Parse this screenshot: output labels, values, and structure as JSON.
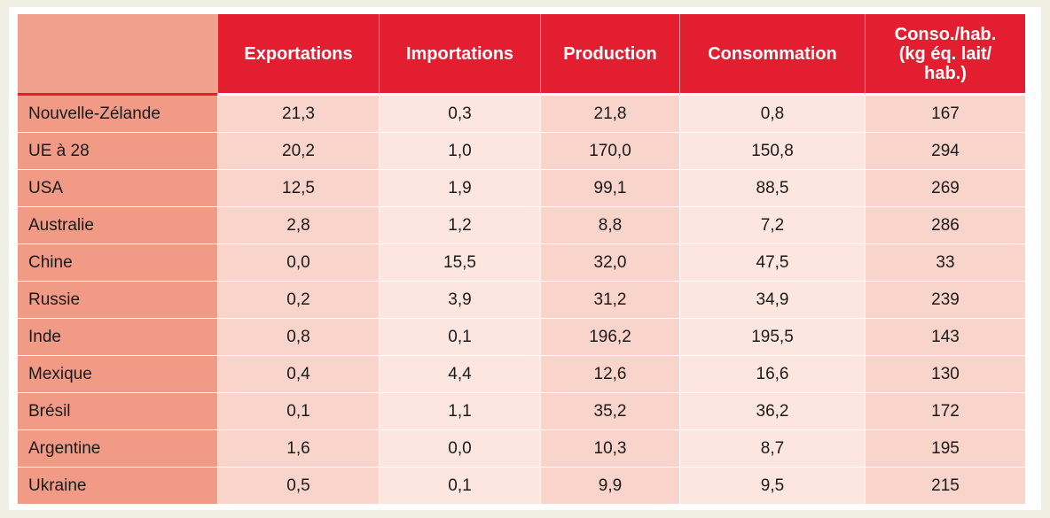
{
  "chart_data": {
    "type": "table",
    "columns": [
      "Exportations",
      "Importations",
      "Production",
      "Consommation",
      "Conso./hab. (kg éq. lait/ hab.)"
    ],
    "header_lines": {
      "conso_hab": [
        "Conso./hab.",
        "(kg éq. lait/",
        "hab.)"
      ]
    },
    "rows": [
      {
        "country": "Nouvelle-Zélande",
        "values": [
          "21,3",
          "0,3",
          "21,8",
          "0,8",
          "167"
        ]
      },
      {
        "country": "UE à 28",
        "values": [
          "20,2",
          "1,0",
          "170,0",
          "150,8",
          "294"
        ]
      },
      {
        "country": "USA",
        "values": [
          "12,5",
          "1,9",
          "99,1",
          "88,5",
          "269"
        ]
      },
      {
        "country": "Australie",
        "values": [
          "2,8",
          "1,2",
          "8,8",
          "7,2",
          "286"
        ]
      },
      {
        "country": "Chine",
        "values": [
          "0,0",
          "15,5",
          "32,0",
          "47,5",
          "33"
        ]
      },
      {
        "country": "Russie",
        "values": [
          "0,2",
          "3,9",
          "31,2",
          "34,9",
          "239"
        ]
      },
      {
        "country": "Inde",
        "values": [
          "0,8",
          "0,1",
          "196,2",
          "195,5",
          "143"
        ]
      },
      {
        "country": "Mexique",
        "values": [
          "0,4",
          "4,4",
          "12,6",
          "16,6",
          "130"
        ]
      },
      {
        "country": "Brésil",
        "values": [
          "0,1",
          "1,1",
          "35,2",
          "36,2",
          "172"
        ]
      },
      {
        "country": "Argentine",
        "values": [
          "1,6",
          "0,0",
          "10,3",
          "8,7",
          "195"
        ]
      },
      {
        "country": "Ukraine",
        "values": [
          "0,5",
          "0,1",
          "9,9",
          "9,5",
          "215"
        ]
      }
    ]
  },
  "colors": {
    "header_red": "#e31e30",
    "corner_salmon": "#f0a08c",
    "country_column": "#f19a86",
    "cell_dark": "#f9d4ca",
    "cell_light": "#fce6df",
    "page_border": "#efefe4"
  }
}
